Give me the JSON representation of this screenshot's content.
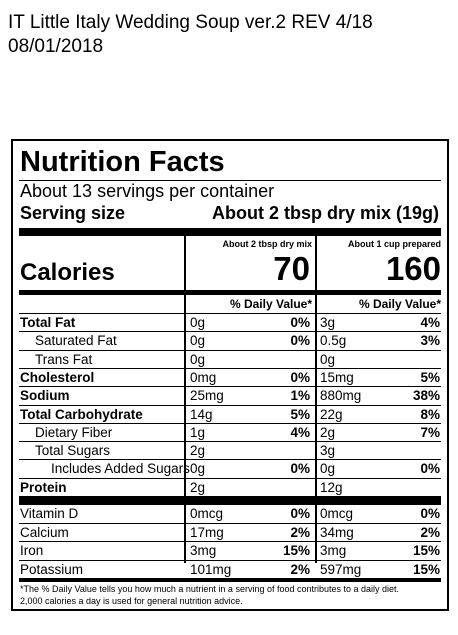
{
  "header": {
    "line1": "IT Little Italy Wedding Soup ver.2 REV 4/18",
    "line2": "08/01/2018"
  },
  "label": {
    "title": "Nutrition Facts",
    "servings": "About 13 servings per container",
    "serving_size_label": "Serving size",
    "serving_size_value": "About 2 tbsp dry mix (19g)",
    "col1_header": "About 2 tbsp dry mix",
    "col2_header": "About 1 cup prepared",
    "calories_label": "Calories",
    "calories_col1": "70",
    "calories_col2": "160",
    "dv_header": "% Daily Value*",
    "nutrients": [
      {
        "name": "Total Fat",
        "bold": true,
        "indent": 0,
        "a1": "0g",
        "p1": "0%",
        "a2": "3g",
        "p2": "4%"
      },
      {
        "name": "Saturated Fat",
        "bold": false,
        "indent": 1,
        "a1": "0g",
        "p1": "0%",
        "a2": "0.5g",
        "p2": "3%"
      },
      {
        "name": "Trans Fat",
        "bold": false,
        "indent": 1,
        "a1": "0g",
        "p1": "",
        "a2": "0g",
        "p2": ""
      },
      {
        "name": "Cholesterol",
        "bold": true,
        "indent": 0,
        "a1": "0mg",
        "p1": "0%",
        "a2": "15mg",
        "p2": "5%"
      },
      {
        "name": "Sodium",
        "bold": true,
        "indent": 0,
        "a1": "25mg",
        "p1": "1%",
        "a2": "880mg",
        "p2": "38%"
      },
      {
        "name": "Total Carbohydrate",
        "bold": true,
        "indent": 0,
        "a1": "14g",
        "p1": "5%",
        "a2": "22g",
        "p2": "8%"
      },
      {
        "name": "Dietary Fiber",
        "bold": false,
        "indent": 1,
        "a1": "1g",
        "p1": "4%",
        "a2": "2g",
        "p2": "7%"
      },
      {
        "name": "Total Sugars",
        "bold": false,
        "indent": 1,
        "a1": "2g",
        "p1": "",
        "a2": "3g",
        "p2": ""
      },
      {
        "name": "Includes Added Sugars",
        "bold": false,
        "indent": 2,
        "a1": "0g",
        "p1": "0%",
        "a2": "0g",
        "p2": "0%"
      },
      {
        "name": "Protein",
        "bold": true,
        "indent": 0,
        "a1": "2g",
        "p1": "",
        "a2": "12g",
        "p2": ""
      }
    ],
    "vitamins": [
      {
        "name": "Vitamin D",
        "a1": "0mcg",
        "p1": "0%",
        "a2": "0mcg",
        "p2": "0%"
      },
      {
        "name": "Calcium",
        "a1": "17mg",
        "p1": "2%",
        "a2": "34mg",
        "p2": "2%"
      },
      {
        "name": "Iron",
        "a1": "3mg",
        "p1": "15%",
        "a2": "3mg",
        "p2": "15%"
      },
      {
        "name": "Potassium",
        "a1": "101mg",
        "p1": "2%",
        "a2": "597mg",
        "p2": "15%"
      }
    ],
    "footnote_line1": "*The % Daily Value tells you how much a nutrient in a serving of food contributes to a daily diet.",
    "footnote_line2": "2,000 calories a day is used for general nutrition advice."
  }
}
